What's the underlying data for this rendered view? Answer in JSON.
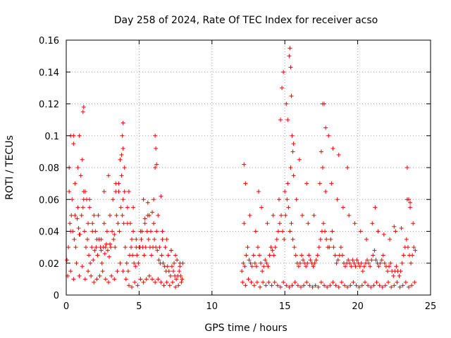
{
  "chart_data": {
    "type": "scatter",
    "title": "Day 258 of 2024, Rate Of TEC Index for receiver acso",
    "xlabel": "GPS time / hours",
    "ylabel": "ROTI / TECUs",
    "xlim": [
      0,
      25
    ],
    "ylim": [
      0,
      0.16
    ],
    "x_ticks": [
      0,
      5,
      10,
      15,
      20,
      25
    ],
    "x_tick_labels": [
      "0",
      "5",
      "10",
      "15",
      "20",
      "25"
    ],
    "y_ticks": [
      0,
      0.02,
      0.04,
      0.06,
      0.08,
      0.1,
      0.12,
      0.14,
      0.16
    ],
    "y_tick_labels": [
      "0",
      "0.02",
      "0.04",
      "0.06",
      "0.08",
      "0.1",
      "0.12",
      "0.14",
      "0.16"
    ],
    "grid": true,
    "marker": "+",
    "marker_color": "#ff0000",
    "series": [
      {
        "x": [
          0.05,
          0.15,
          0.25,
          0.35,
          0.45,
          0.55,
          0.65,
          0.75,
          0.85,
          0.95,
          1.05,
          1.15,
          1.25,
          1.35,
          1.45,
          1.55,
          1.65,
          1.75,
          1.85,
          1.95,
          2.05,
          2.15,
          2.25,
          2.35,
          2.45,
          2.55,
          2.65,
          2.75,
          2.85,
          2.95,
          3.05,
          3.15,
          3.25,
          3.35,
          3.45,
          3.55,
          3.65,
          3.75,
          3.85,
          3.95,
          4.05,
          4.15,
          4.25,
          4.35,
          4.45,
          4.55,
          4.65,
          4.75,
          4.85,
          4.95,
          5.05,
          5.15,
          5.25,
          5.35,
          5.45,
          5.55,
          5.65,
          5.75,
          5.85,
          5.95,
          6.05,
          6.15,
          6.25,
          6.35,
          6.45,
          6.55,
          6.65,
          6.75,
          6.85,
          6.95,
          7.05,
          7.15,
          7.25,
          7.35,
          7.45,
          7.55,
          7.65,
          7.75,
          7.85,
          7.95,
          0.1,
          0.3,
          0.5,
          0.7,
          0.9,
          1.1,
          1.3,
          1.5,
          1.7,
          1.9,
          2.1,
          2.3,
          2.5,
          2.7,
          2.9,
          3.1,
          3.3,
          3.5,
          3.7,
          3.9,
          4.1,
          4.3,
          4.5,
          4.7,
          4.9,
          5.1,
          5.3,
          5.5,
          5.7,
          5.9,
          6.1,
          6.3,
          6.5,
          6.7,
          6.9,
          7.1,
          7.3,
          7.5,
          7.7,
          7.9,
          0.2,
          0.4,
          0.6,
          0.8,
          1.0,
          1.2,
          1.4,
          1.6,
          1.8,
          2.0,
          2.2,
          2.4,
          2.6,
          2.8,
          3.0,
          3.2,
          3.4,
          3.6,
          3.8,
          4.0,
          4.2,
          4.4,
          4.6,
          4.8,
          5.0,
          5.2,
          5.4,
          5.6,
          5.8,
          6.0,
          6.2,
          6.4,
          6.6,
          6.8,
          7.0,
          7.2,
          7.4,
          7.6,
          7.8,
          8.0,
          0.3,
          0.6,
          0.9,
          1.2,
          1.5,
          1.8,
          2.1,
          2.4,
          2.7,
          3.0,
          3.3,
          3.6,
          3.9,
          4.2,
          4.5,
          4.8,
          5.1,
          5.4,
          5.7,
          6.0,
          6.3,
          6.6,
          6.9,
          7.2,
          7.5,
          7.8,
          0.2,
          0.5,
          0.8,
          1.1,
          1.3,
          1.6,
          1.9,
          2.6,
          2.9,
          3.4,
          3.7,
          3.8,
          3.9,
          4.0,
          4.3,
          4.6,
          5.3,
          5.6,
          5.9,
          6.1,
          6.2,
          6.5,
          0.3,
          0.5,
          0.9,
          1.15,
          1.2,
          3.85,
          3.9,
          6.1,
          6.15,
          12.05,
          12.15,
          12.25,
          12.35,
          12.45,
          12.55,
          12.65,
          12.75,
          12.85,
          12.95,
          13.05,
          13.15,
          13.25,
          13.35,
          13.45,
          13.55,
          13.65,
          13.75,
          13.85,
          13.95,
          14.05,
          14.15,
          14.25,
          14.35,
          14.45,
          14.55,
          14.65,
          14.75,
          14.85,
          14.95,
          15.05,
          15.15,
          15.25,
          15.35,
          15.45,
          15.55,
          15.65,
          15.75,
          15.85,
          15.95,
          16.05,
          16.15,
          16.25,
          16.35,
          16.45,
          16.55,
          16.65,
          16.75,
          16.85,
          16.95,
          17.05,
          17.15,
          17.25,
          17.35,
          17.45,
          17.55,
          17.65,
          17.75,
          17.85,
          17.95,
          18.05,
          18.15,
          18.25,
          18.35,
          18.45,
          18.55,
          18.65,
          18.75,
          18.85,
          18.95,
          19.05,
          19.15,
          19.25,
          19.35,
          19.45,
          19.55,
          19.65,
          19.75,
          19.85,
          19.95,
          20.05,
          20.15,
          20.25,
          20.35,
          20.45,
          20.55,
          20.65,
          20.75,
          20.85,
          20.95,
          21.05,
          21.15,
          21.25,
          21.35,
          21.45,
          21.55,
          21.65,
          21.75,
          21.85,
          21.95,
          22.05,
          22.15,
          22.25,
          22.35,
          22.45,
          22.55,
          22.65,
          22.75,
          22.85,
          22.95,
          23.05,
          23.15,
          23.25,
          23.35,
          23.45,
          23.55,
          23.65,
          23.75,
          23.85,
          23.95,
          12.1,
          12.3,
          12.5,
          12.7,
          12.9,
          13.1,
          13.3,
          13.5,
          13.7,
          13.9,
          14.1,
          14.3,
          14.5,
          14.7,
          14.9,
          15.1,
          15.3,
          15.5,
          15.7,
          15.9,
          16.1,
          16.3,
          16.5,
          16.7,
          16.9,
          17.1,
          17.3,
          17.5,
          17.7,
          17.9,
          18.1,
          18.3,
          18.5,
          18.7,
          18.9,
          19.1,
          19.3,
          19.5,
          19.7,
          19.9,
          20.1,
          20.3,
          20.5,
          20.7,
          20.9,
          21.1,
          21.3,
          21.5,
          21.7,
          21.9,
          22.1,
          22.3,
          22.5,
          22.7,
          22.9,
          23.1,
          23.3,
          23.5,
          23.7,
          23.9,
          12.2,
          12.6,
          13.0,
          13.4,
          13.8,
          14.2,
          14.6,
          15.0,
          15.2,
          15.4,
          15.6,
          15.8,
          16.2,
          16.6,
          17.0,
          17.4,
          17.6,
          17.8,
          18.2,
          18.6,
          19.0,
          19.4,
          19.8,
          20.2,
          20.6,
          21.0,
          21.4,
          21.8,
          22.2,
          22.6,
          23.0,
          23.4,
          23.6,
          23.8,
          12.2,
          12.3,
          13.2,
          14.7,
          14.8,
          14.9,
          15.1,
          15.2,
          15.3,
          15.35,
          15.4,
          15.45,
          15.5,
          15.55,
          15.6,
          16.0,
          16.5,
          17.5,
          17.6,
          17.7,
          17.8,
          18.0,
          18.3,
          18.7,
          19.3,
          21.2,
          22.5,
          23.4,
          23.5,
          23.6
        ],
        "y": [
          0.022,
          0.03,
          0.045,
          0.05,
          0.04,
          0.035,
          0.03,
          0.048,
          0.042,
          0.038,
          0.05,
          0.055,
          0.04,
          0.03,
          0.035,
          0.025,
          0.02,
          0.03,
          0.022,
          0.028,
          0.03,
          0.025,
          0.035,
          0.03,
          0.02,
          0.03,
          0.026,
          0.032,
          0.028,
          0.024,
          0.03,
          0.04,
          0.035,
          0.03,
          0.05,
          0.045,
          0.04,
          0.055,
          0.05,
          0.045,
          0.03,
          0.02,
          0.015,
          0.025,
          0.03,
          0.025,
          0.02,
          0.018,
          0.025,
          0.02,
          0.03,
          0.035,
          0.03,
          0.025,
          0.03,
          0.04,
          0.035,
          0.03,
          0.025,
          0.03,
          0.035,
          0.03,
          0.028,
          0.022,
          0.02,
          0.025,
          0.02,
          0.018,
          0.015,
          0.018,
          0.015,
          0.012,
          0.018,
          0.015,
          0.012,
          0.01,
          0.012,
          0.015,
          0.012,
          0.01,
          0.012,
          0.015,
          0.01,
          0.02,
          0.012,
          0.018,
          0.01,
          0.015,
          0.012,
          0.008,
          0.01,
          0.012,
          0.015,
          0.01,
          0.008,
          0.012,
          0.01,
          0.015,
          0.02,
          0.015,
          0.01,
          0.006,
          0.005,
          0.008,
          0.006,
          0.01,
          0.008,
          0.01,
          0.012,
          0.01,
          0.008,
          0.01,
          0.008,
          0.006,
          0.008,
          0.006,
          0.008,
          0.005,
          0.006,
          0.008,
          0.065,
          0.06,
          0.07,
          0.055,
          0.075,
          0.065,
          0.06,
          0.055,
          0.045,
          0.04,
          0.05,
          0.035,
          0.045,
          0.04,
          0.05,
          0.06,
          0.065,
          0.07,
          0.075,
          0.065,
          0.055,
          0.045,
          0.04,
          0.035,
          0.03,
          0.04,
          0.045,
          0.05,
          0.04,
          0.045,
          0.04,
          0.03,
          0.035,
          0.03,
          0.025,
          0.028,
          0.02,
          0.022,
          0.018,
          0.02,
          0.04,
          0.05,
          0.038,
          0.06,
          0.045,
          0.04,
          0.035,
          0.028,
          0.03,
          0.032,
          0.038,
          0.065,
          0.06,
          0.045,
          0.035,
          0.03,
          0.04,
          0.048,
          0.05,
          0.06,
          0.05,
          0.04,
          0.035,
          0.028,
          0.025,
          0.02,
          0.08,
          0.095,
          0.08,
          0.085,
          0.065,
          0.06,
          0.05,
          0.065,
          0.075,
          0.07,
          0.085,
          0.088,
          0.092,
          0.08,
          0.065,
          0.055,
          0.06,
          0.058,
          0.052,
          0.08,
          0.082,
          0.062,
          0.1,
          0.1,
          0.1,
          0.115,
          0.118,
          0.1,
          0.108,
          0.1,
          0.092,
          0.015,
          0.02,
          0.018,
          0.025,
          0.03,
          0.022,
          0.02,
          0.018,
          0.025,
          0.02,
          0.018,
          0.03,
          0.025,
          0.02,
          0.015,
          0.018,
          0.022,
          0.02,
          0.018,
          0.025,
          0.03,
          0.028,
          0.025,
          0.03,
          0.035,
          0.04,
          0.045,
          0.05,
          0.04,
          0.035,
          0.05,
          0.06,
          0.055,
          0.04,
          0.045,
          0.035,
          0.03,
          0.025,
          0.02,
          0.018,
          0.02,
          0.025,
          0.022,
          0.02,
          0.018,
          0.02,
          0.025,
          0.022,
          0.02,
          0.018,
          0.02,
          0.022,
          0.025,
          0.03,
          0.035,
          0.04,
          0.045,
          0.04,
          0.035,
          0.03,
          0.03,
          0.035,
          0.04,
          0.03,
          0.025,
          0.02,
          0.022,
          0.025,
          0.03,
          0.025,
          0.02,
          0.018,
          0.02,
          0.022,
          0.02,
          0.018,
          0.022,
          0.02,
          0.018,
          0.022,
          0.02,
          0.018,
          0.02,
          0.015,
          0.018,
          0.02,
          0.022,
          0.02,
          0.018,
          0.022,
          0.025,
          0.028,
          0.022,
          0.02,
          0.018,
          0.02,
          0.022,
          0.025,
          0.02,
          0.018,
          0.015,
          0.018,
          0.02,
          0.015,
          0.012,
          0.015,
          0.018,
          0.015,
          0.012,
          0.015,
          0.02,
          0.025,
          0.03,
          0.035,
          0.03,
          0.025,
          0.02,
          0.025,
          0.03,
          0.028,
          0.008,
          0.006,
          0.01,
          0.008,
          0.006,
          0.008,
          0.005,
          0.008,
          0.006,
          0.008,
          0.006,
          0.008,
          0.006,
          0.005,
          0.008,
          0.006,
          0.005,
          0.006,
          0.008,
          0.006,
          0.005,
          0.006,
          0.008,
          0.006,
          0.005,
          0.006,
          0.005,
          0.008,
          0.006,
          0.005,
          0.006,
          0.008,
          0.006,
          0.005,
          0.008,
          0.006,
          0.005,
          0.006,
          0.008,
          0.006,
          0.005,
          0.006,
          0.008,
          0.006,
          0.005,
          0.006,
          0.008,
          0.006,
          0.005,
          0.006,
          0.008,
          0.005,
          0.006,
          0.008,
          0.005,
          0.006,
          0.008,
          0.005,
          0.006,
          0.008,
          0.045,
          0.05,
          0.04,
          0.055,
          0.045,
          0.05,
          0.06,
          0.065,
          0.07,
          0.08,
          0.075,
          0.06,
          0.05,
          0.045,
          0.05,
          0.07,
          0.08,
          0.065,
          0.07,
          0.06,
          0.055,
          0.05,
          0.045,
          0.04,
          0.035,
          0.045,
          0.04,
          0.038,
          0.035,
          0.04,
          0.042,
          0.06,
          0.058,
          0.045,
          0.082,
          0.07,
          0.065,
          0.11,
          0.13,
          0.14,
          0.12,
          0.11,
          0.15,
          0.155,
          0.143,
          0.125,
          0.1,
          0.09,
          0.095,
          0.085,
          0.07,
          0.09,
          0.12,
          0.12,
          0.105,
          0.1,
          0.092,
          0.088,
          0.08,
          0.055,
          0.043,
          0.08,
          0.06,
          0.055
        ]
      }
    ]
  }
}
